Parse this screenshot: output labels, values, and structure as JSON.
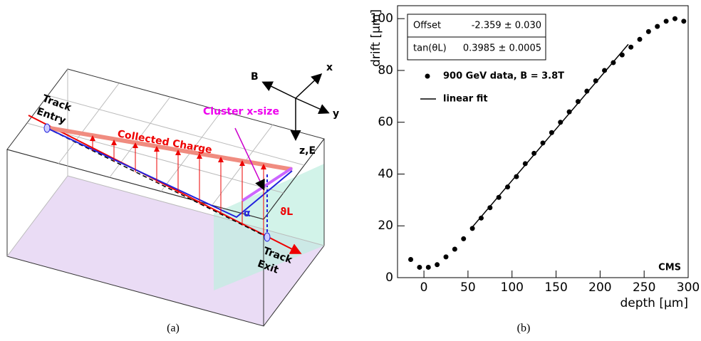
{
  "panel_a": {
    "track_entry": [
      "Track",
      "Entry"
    ],
    "collected_charge": "Collected Charge",
    "cluster_size": "Cluster x-size",
    "axis_b": "B",
    "axis_x": "x",
    "axis_y": "y",
    "axis_ze": "z,E",
    "alpha": "α",
    "theta": "ϑL",
    "track_exit": [
      "Track",
      "Exit"
    ]
  },
  "captions": {
    "a": "(a)",
    "b": "(b)"
  },
  "chart_data": {
    "type": "scatter",
    "xlabel": "depth [μm]",
    "ylabel": "drift [μm]",
    "xlim": [
      -30,
      300
    ],
    "ylim": [
      0,
      105
    ],
    "xticks": [
      0,
      50,
      100,
      150,
      200,
      250,
      300
    ],
    "yticks": [
      0,
      20,
      40,
      60,
      80,
      100
    ],
    "fit_box": [
      [
        "Offset",
        "-2.359 ± 0.030"
      ],
      [
        "tan(θL)",
        "0.3985 ± 0.0005"
      ]
    ],
    "annotation": "CMS",
    "series": [
      {
        "name": "900 GeV data, B = 3.8T",
        "color": "#000000",
        "x": [
          -15,
          -5,
          5,
          15,
          25,
          35,
          45,
          55,
          65,
          75,
          85,
          95,
          105,
          115,
          125,
          135,
          145,
          155,
          165,
          175,
          185,
          195,
          205,
          215,
          225,
          235,
          245,
          255,
          265,
          275,
          285,
          295
        ],
        "values": [
          7,
          4,
          4,
          5,
          8,
          11,
          15,
          19,
          23,
          27,
          31,
          35,
          39,
          44,
          48,
          52,
          56,
          60,
          64,
          68,
          72,
          76,
          80,
          83,
          86,
          89,
          92,
          95,
          97,
          99,
          100,
          99
        ]
      },
      {
        "name": "linear fit",
        "color": "#000000",
        "x": [
          55,
          232
        ],
        "values": [
          19.56,
          90.09
        ]
      }
    ]
  }
}
